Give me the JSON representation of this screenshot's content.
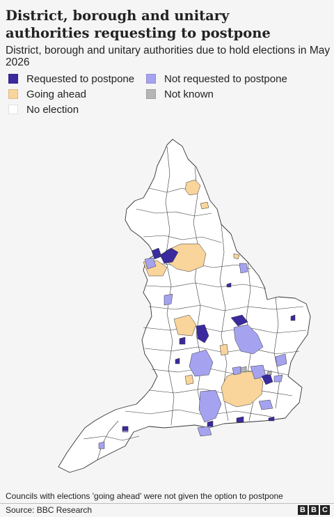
{
  "title": "District, borough and unitary authorities requesting to postpone",
  "subtitle": "District, borough and unitary authorities due to hold elections in May 2026",
  "legend": {
    "requested": "Requested to postpone",
    "not_requested": "Not requested to postpone",
    "going_ahead": "Going ahead",
    "not_known": "Not known",
    "no_election": "No election"
  },
  "colors": {
    "requested": "#3a2a9e",
    "not_requested": "#a5a3f0",
    "going_ahead": "#f9d49b",
    "not_known": "#b5b5b5",
    "no_election": "#ffffff",
    "boundary": "#333333"
  },
  "footnote": "Councils with elections 'going ahead' were not given the option to postpone",
  "source": "Source: BBC Research",
  "logo": {
    "letters": [
      "B",
      "B",
      "C"
    ]
  }
}
